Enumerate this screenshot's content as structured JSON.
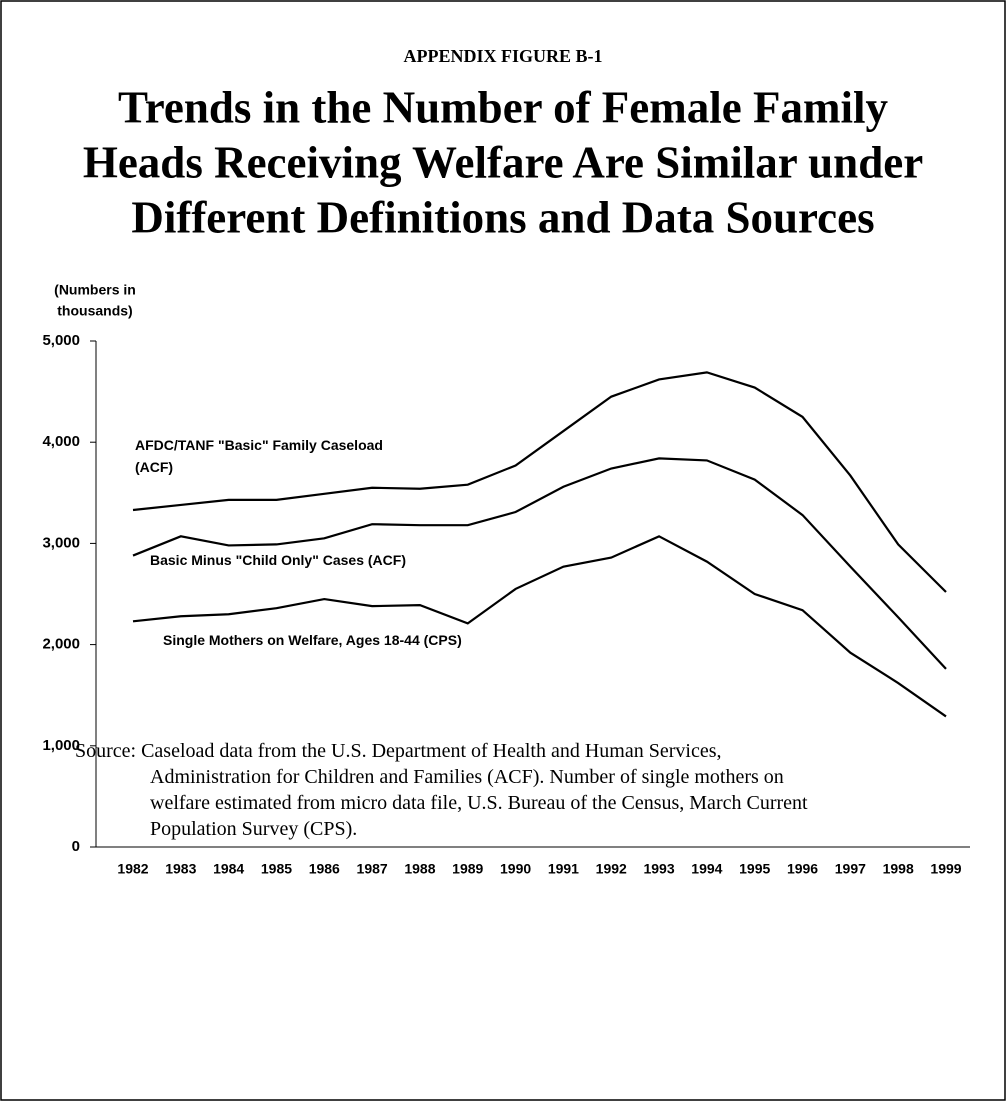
{
  "chart_data": {
    "type": "line",
    "supertitle": "APPENDIX FIGURE B-1",
    "title": [
      "Trends in the Number of Female Family",
      "Heads Receiving Welfare Are Similar under",
      "Different Definitions and Data Sources"
    ],
    "ylabel": [
      "(Numbers in",
      "thousands)"
    ],
    "categories": [
      "1982",
      "1983",
      "1984",
      "1985",
      "1986",
      "1987",
      "1988",
      "1989",
      "1990",
      "1991",
      "1992",
      "1993",
      "1994",
      "1995",
      "1996",
      "1997",
      "1998",
      "1999"
    ],
    "series": [
      {
        "name": "AFDC/TANF \"Basic\" Family Caseload (ACF)",
        "color": "#000000",
        "values": [
          3330,
          3380,
          3430,
          3430,
          3490,
          3550,
          3540,
          3580,
          3770,
          4110,
          4450,
          4620,
          4690,
          4540,
          4250,
          3670,
          2990,
          2520
        ]
      },
      {
        "name": "Basic Minus \"Child Only\" Cases (ACF)",
        "color": "#000000",
        "values": [
          2880,
          3070,
          2980,
          2990,
          3050,
          3190,
          3180,
          3180,
          3310,
          3560,
          3740,
          3840,
          3820,
          3630,
          3280,
          2770,
          2270,
          1760
        ]
      },
      {
        "name": "Single Mothers on Welfare,  Ages 18-44  (CPS)",
        "color": "#000000",
        "values": [
          2230,
          2280,
          2300,
          2360,
          2450,
          2380,
          2390,
          2210,
          2550,
          2770,
          2860,
          3070,
          2820,
          2500,
          2340,
          1920,
          1620,
          1290
        ]
      }
    ],
    "ylim": [
      0,
      5000
    ],
    "yticks": [
      0,
      {
        "value": 1000,
        "label": "1,000"
      },
      {
        "value": 2000,
        "label": "2,000"
      },
      {
        "value": 3000,
        "label": "3,000"
      },
      {
        "value": 4000,
        "label": "4,000"
      },
      {
        "value": 5000,
        "label": "5,000"
      }
    ],
    "source": "Source: Caseload data from the U.S. Department of Health and Human Services, Administration for Children and Families (ACF).  Number of single mothers on welfare estimated from micro data file, U.S. Bureau of the Census, March Current Population Survey (CPS)."
  }
}
